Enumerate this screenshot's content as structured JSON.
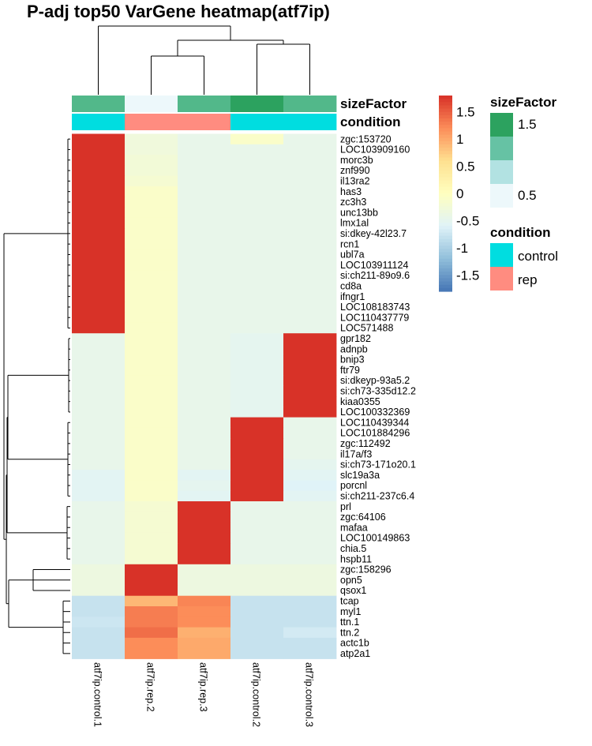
{
  "title": "P-adj top50 VarGene heatmap(atf7ip)",
  "chart_data": {
    "type": "heatmap",
    "columns": [
      "atf7ip.control.1",
      "atf7ip.rep.2",
      "atf7ip.rep.3",
      "atf7ip.control.2",
      "atf7ip.control.3"
    ],
    "rows": [
      "zgc:153720",
      "LOC103909160",
      "morc3b",
      "znf990",
      "il13ra2",
      "has3",
      "zc3h3",
      "unc13bb",
      "lmx1al",
      "si:dkey-42l23.7",
      "rcn1",
      "ubl7a",
      "LOC103911124",
      "si:ch211-89o9.6",
      "cd8a",
      "ifngr1",
      "LOC108183743",
      "LOC110437779",
      "LOC571488",
      "gpr182",
      "adnpb",
      "bnip3",
      "ftr79",
      "si:dkeyp-93a5.2",
      "si:ch73-335d12.2",
      "kiaa0355",
      "LOC100332369",
      "LOC110439344",
      "LOC101884296",
      "zgc:112492",
      "il17a/f3",
      "si:ch73-171o20.1",
      "slc19a3a",
      "porcnl",
      "si:ch211-237c6.4",
      "prl",
      "zgc:64106",
      "mafaa",
      "LOC100149863",
      "chia.5",
      "hspb11",
      "zgc:158296",
      "opn5",
      "qsox1",
      "tcap",
      "myl1",
      "ttn.1",
      "ttn.2",
      "actc1b",
      "atp2a1"
    ],
    "values": [
      [
        1.79,
        -0.3,
        -0.45,
        -0.1,
        -0.45
      ],
      [
        1.79,
        -0.3,
        -0.45,
        -0.45,
        -0.45
      ],
      [
        1.79,
        -0.25,
        -0.45,
        -0.45,
        -0.45
      ],
      [
        1.79,
        -0.25,
        -0.45,
        -0.45,
        -0.45
      ],
      [
        1.79,
        -0.2,
        -0.45,
        -0.45,
        -0.45
      ],
      [
        1.79,
        -0.1,
        -0.45,
        -0.45,
        -0.45
      ],
      [
        1.79,
        -0.1,
        -0.45,
        -0.45,
        -0.45
      ],
      [
        1.79,
        -0.1,
        -0.45,
        -0.45,
        -0.45
      ],
      [
        1.79,
        -0.1,
        -0.45,
        -0.45,
        -0.45
      ],
      [
        1.79,
        -0.1,
        -0.45,
        -0.45,
        -0.45
      ],
      [
        1.79,
        -0.1,
        -0.45,
        -0.45,
        -0.45
      ],
      [
        1.79,
        -0.1,
        -0.45,
        -0.45,
        -0.45
      ],
      [
        1.79,
        -0.1,
        -0.45,
        -0.45,
        -0.45
      ],
      [
        1.79,
        -0.1,
        -0.45,
        -0.45,
        -0.45
      ],
      [
        1.79,
        -0.1,
        -0.45,
        -0.45,
        -0.45
      ],
      [
        1.79,
        -0.1,
        -0.45,
        -0.45,
        -0.45
      ],
      [
        1.79,
        -0.1,
        -0.45,
        -0.45,
        -0.45
      ],
      [
        1.79,
        -0.1,
        -0.45,
        -0.45,
        -0.45
      ],
      [
        1.79,
        -0.1,
        -0.45,
        -0.45,
        -0.45
      ],
      [
        -0.45,
        -0.1,
        -0.45,
        -0.5,
        1.79
      ],
      [
        -0.45,
        -0.1,
        -0.45,
        -0.5,
        1.79
      ],
      [
        -0.45,
        -0.1,
        -0.45,
        -0.5,
        1.79
      ],
      [
        -0.45,
        -0.1,
        -0.45,
        -0.5,
        1.79
      ],
      [
        -0.45,
        -0.1,
        -0.45,
        -0.5,
        1.79
      ],
      [
        -0.45,
        -0.1,
        -0.45,
        -0.5,
        1.79
      ],
      [
        -0.45,
        -0.1,
        -0.45,
        -0.5,
        1.79
      ],
      [
        -0.45,
        -0.1,
        -0.45,
        -0.5,
        1.79
      ],
      [
        -0.45,
        -0.1,
        -0.45,
        1.79,
        -0.45
      ],
      [
        -0.45,
        -0.1,
        -0.45,
        1.79,
        -0.45
      ],
      [
        -0.45,
        -0.1,
        -0.45,
        1.79,
        -0.45
      ],
      [
        -0.45,
        -0.1,
        -0.45,
        1.79,
        -0.45
      ],
      [
        -0.45,
        -0.1,
        -0.45,
        1.79,
        -0.5
      ],
      [
        -0.55,
        -0.1,
        -0.55,
        1.79,
        -0.55
      ],
      [
        -0.55,
        -0.1,
        -0.5,
        1.79,
        -0.6
      ],
      [
        -0.55,
        -0.1,
        -0.55,
        1.79,
        -0.55
      ],
      [
        -0.45,
        -0.2,
        1.79,
        -0.45,
        -0.45
      ],
      [
        -0.45,
        -0.2,
        1.79,
        -0.45,
        -0.45
      ],
      [
        -0.45,
        -0.2,
        1.79,
        -0.45,
        -0.45
      ],
      [
        -0.45,
        -0.2,
        1.79,
        -0.45,
        -0.45
      ],
      [
        -0.45,
        -0.2,
        1.79,
        -0.45,
        -0.45
      ],
      [
        -0.45,
        -0.2,
        1.79,
        -0.45,
        -0.45
      ],
      [
        -0.35,
        1.79,
        -0.35,
        -0.35,
        -0.35
      ],
      [
        -0.35,
        1.79,
        -0.35,
        -0.35,
        -0.35
      ],
      [
        -0.35,
        1.79,
        -0.35,
        -0.35,
        -0.35
      ],
      [
        -0.8,
        0.9,
        1.25,
        -0.8,
        -0.8
      ],
      [
        -0.8,
        1.3,
        1.2,
        -0.8,
        -0.8
      ],
      [
        -0.75,
        1.3,
        1.2,
        -0.8,
        -0.8
      ],
      [
        -0.8,
        1.4,
        0.95,
        -0.8,
        -0.7
      ],
      [
        -0.8,
        1.2,
        1.0,
        -0.8,
        -0.8
      ],
      [
        -0.8,
        1.2,
        1.0,
        -0.8,
        -0.8
      ]
    ],
    "annotations": {
      "sizeFactor": [
        1.2,
        0.5,
        1.2,
        1.6,
        1.2
      ],
      "condition": [
        "control",
        "rep",
        "rep",
        "control",
        "control"
      ]
    },
    "annotation_labels": [
      "sizeFactor",
      "condition"
    ],
    "color_scale": {
      "ticks": [
        "1.5",
        "1",
        "0.5",
        "0",
        "-0.5",
        "-1",
        "-1.5"
      ],
      "tick_values": [
        1.5,
        1,
        0.5,
        0,
        -0.5,
        -1,
        -1.5
      ],
      "min": -1.8,
      "max": 1.8
    },
    "legend_sizeFactor": {
      "title": "sizeFactor",
      "labels": [
        "1.5",
        "0.5"
      ],
      "colors": [
        "#2ca25f",
        "#66c2a4",
        "#b2e2e2",
        "#edf8fb"
      ]
    },
    "legend_condition": {
      "title": "condition",
      "labels": [
        "control",
        "rep"
      ],
      "colors": {
        "control": "#00dde0",
        "rep": "#ff8c80"
      }
    },
    "sizefactor_colors": {
      "0.5": "#edf8fb",
      "1.2": "#52b88a",
      "1.6": "#2ca25f"
    }
  }
}
